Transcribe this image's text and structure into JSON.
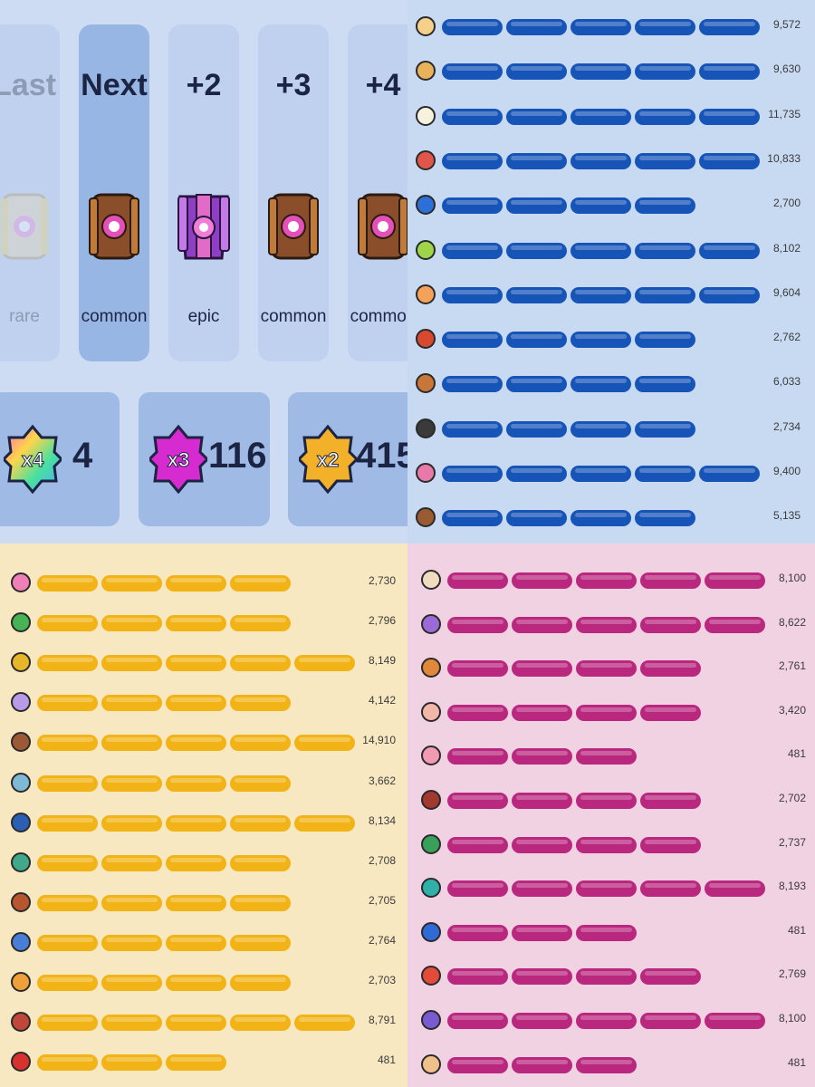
{
  "chests": {
    "cards": [
      {
        "title": "Last",
        "rarity": "rare",
        "type": "rare",
        "state": "past"
      },
      {
        "title": "Next",
        "rarity": "common",
        "type": "common",
        "state": "next"
      },
      {
        "title": "+2",
        "rarity": "epic",
        "type": "epic",
        "state": "upcoming"
      },
      {
        "title": "+3",
        "rarity": "common",
        "type": "common",
        "state": "upcoming"
      },
      {
        "title": "+4",
        "rarity": "common",
        "type": "common",
        "state": "upcoming"
      }
    ],
    "multipliers": [
      {
        "badge": "x4",
        "count": "4",
        "color": "rainbow"
      },
      {
        "badge": "x3",
        "count": "116",
        "color": "#d62bd0"
      },
      {
        "badge": "x2",
        "count": "415",
        "color": "#f3b12a"
      }
    ]
  },
  "colors": {
    "blue_bar": "#1754b8",
    "yellow_bar": "#f2b316",
    "pink_bar": "#b9287e",
    "chest_common": "#8a4f2a",
    "chest_epic": "#8f3fc4",
    "chest_rare": "#e8d9a8"
  },
  "panels": {
    "blue": {
      "color": "#1754b8",
      "rows": [
        {
          "icon": "brawler-icon",
          "level": 5,
          "points": "9,572",
          "avatar": "#f5d08a"
        },
        {
          "icon": "brawler-icon",
          "level": 5,
          "points": "9,630",
          "avatar": "#e8b25a"
        },
        {
          "icon": "brawler-icon",
          "level": 5,
          "points": "11,735",
          "avatar": "#f7f1de"
        },
        {
          "icon": "brawler-icon",
          "level": 5,
          "points": "10,833",
          "avatar": "#e0564a"
        },
        {
          "icon": "brawler-icon",
          "level": 4,
          "points": "2,700",
          "avatar": "#2c6fd6"
        },
        {
          "icon": "brawler-icon",
          "level": 5,
          "points": "8,102",
          "avatar": "#9ed54b"
        },
        {
          "icon": "brawler-icon",
          "level": 5,
          "points": "9,604",
          "avatar": "#f4a25a"
        },
        {
          "icon": "brawler-icon",
          "level": 4,
          "points": "2,762",
          "avatar": "#d84a2f"
        },
        {
          "icon": "brawler-icon",
          "level": 4,
          "points": "6,033",
          "avatar": "#c8763a"
        },
        {
          "icon": "brawler-icon",
          "level": 4,
          "points": "2,734",
          "avatar": "#3a3a3a"
        },
        {
          "icon": "brawler-icon",
          "level": 5,
          "points": "9,400",
          "avatar": "#e77aa8"
        },
        {
          "icon": "brawler-icon",
          "level": 4,
          "points": "5,135",
          "avatar": "#9a5a32"
        }
      ]
    },
    "yellow": {
      "color": "#f2b316",
      "rows": [
        {
          "icon": "brawler-icon",
          "level": 4,
          "points": "2,730",
          "avatar": "#f07fb8"
        },
        {
          "icon": "brawler-icon",
          "level": 4,
          "points": "2,796",
          "avatar": "#46b454"
        },
        {
          "icon": "brawler-icon",
          "level": 5,
          "points": "8,149",
          "avatar": "#e6b628"
        },
        {
          "icon": "brawler-icon",
          "level": 4,
          "points": "4,142",
          "avatar": "#b89ae6"
        },
        {
          "icon": "brawler-icon",
          "level": 5,
          "points": "14,910",
          "avatar": "#9b5a35"
        },
        {
          "icon": "brawler-icon",
          "level": 4,
          "points": "3,662",
          "avatar": "#7fb9d6"
        },
        {
          "icon": "brawler-icon",
          "level": 5,
          "points": "8,134",
          "avatar": "#2b5fb6"
        },
        {
          "icon": "brawler-icon",
          "level": 4,
          "points": "2,708",
          "avatar": "#3fa98a"
        },
        {
          "icon": "brawler-icon",
          "level": 4,
          "points": "2,705",
          "avatar": "#b8562f"
        },
        {
          "icon": "brawler-icon",
          "level": 4,
          "points": "2,764",
          "avatar": "#4a7ed6"
        },
        {
          "icon": "brawler-icon",
          "level": 4,
          "points": "2,703",
          "avatar": "#f0a03a"
        },
        {
          "icon": "brawler-icon",
          "level": 5,
          "points": "8,791",
          "avatar": "#c0463a"
        },
        {
          "icon": "brawler-icon",
          "level": 3,
          "points": "481",
          "avatar": "#d8322f"
        }
      ]
    },
    "pink": {
      "color": "#b9287e",
      "rows": [
        {
          "icon": "brawler-icon",
          "level": 5,
          "points": "8,100",
          "avatar": "#f2dcc0"
        },
        {
          "icon": "brawler-icon",
          "level": 5,
          "points": "8,622",
          "avatar": "#9a6ad6"
        },
        {
          "icon": "brawler-icon",
          "level": 4,
          "points": "2,761",
          "avatar": "#e0873a"
        },
        {
          "icon": "brawler-icon",
          "level": 4,
          "points": "3,420",
          "avatar": "#f2b7a8"
        },
        {
          "icon": "brawler-icon",
          "level": 3,
          "points": "481",
          "avatar": "#f29ab4"
        },
        {
          "icon": "brawler-icon",
          "level": 4,
          "points": "2,702",
          "avatar": "#a2382f"
        },
        {
          "icon": "brawler-icon",
          "level": 4,
          "points": "2,737",
          "avatar": "#38a05a"
        },
        {
          "icon": "brawler-icon",
          "level": 5,
          "points": "8,193",
          "avatar": "#2fb0a8"
        },
        {
          "icon": "brawler-icon",
          "level": 3,
          "points": "481",
          "avatar": "#2f6ad6"
        },
        {
          "icon": "brawler-icon",
          "level": 4,
          "points": "2,769",
          "avatar": "#e24a3a"
        },
        {
          "icon": "brawler-icon",
          "level": 5,
          "points": "8,100",
          "avatar": "#7a5ad0"
        },
        {
          "icon": "brawler-icon",
          "level": 3,
          "points": "481",
          "avatar": "#f0c08a"
        }
      ]
    }
  }
}
